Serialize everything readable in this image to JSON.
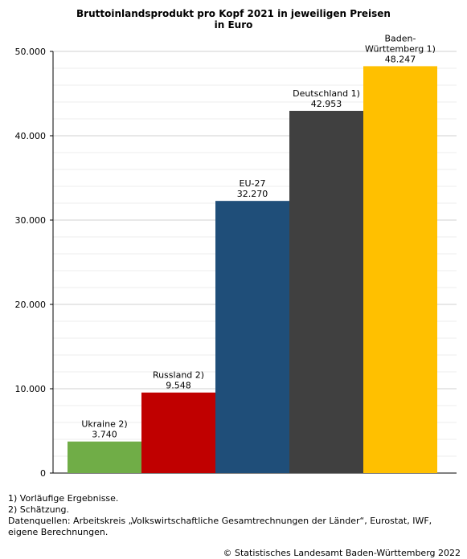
{
  "chart_data": {
    "type": "bar",
    "title_lines": [
      "Bruttoinlandsprodukt pro Kopf 2021 in jeweiligen Preisen",
      "in Euro"
    ],
    "categories": [
      [
        "Ukraine 2)"
      ],
      [
        "Russland 2)"
      ],
      [
        "EU-27"
      ],
      [
        "Deutschland 1)"
      ],
      [
        "Baden-",
        "Württemberg 1)"
      ]
    ],
    "values": [
      3740,
      9548,
      32270,
      42953,
      48247
    ],
    "value_labels": [
      "3.740",
      "9.548",
      "32.270",
      "42.953",
      "48.247"
    ],
    "colors": [
      "#70ad47",
      "#c00000",
      "#1f4e79",
      "#404040",
      "#ffc000"
    ],
    "ylim": [
      0,
      50000
    ],
    "y_ticks": [
      0,
      10000,
      20000,
      30000,
      40000,
      50000
    ],
    "y_tick_labels": [
      "0",
      "10.000",
      "20.000",
      "30.000",
      "40.000",
      "50.000"
    ],
    "grid": true,
    "xlabel": "",
    "ylabel": ""
  },
  "footnotes": [
    "1) Vorläufige Ergebnisse.",
    "2) Schätzung.",
    "Datenquellen: Arbeitskreis „Volkswirtschaftliche Gesamtrechnungen der Länder“, Eurostat, IWF, eigene Berechnungen."
  ],
  "copyright": "© Statistisches Landesamt Baden-Württemberg 2022"
}
